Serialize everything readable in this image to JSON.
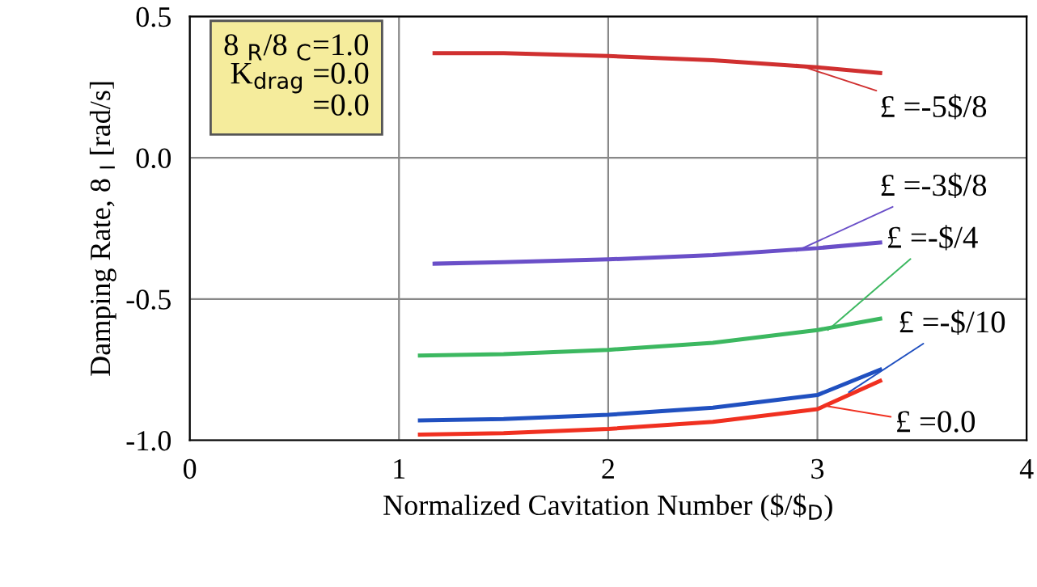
{
  "chart_data": {
    "type": "line",
    "xlabel": "Normalized Cavitation Number ($/$$_{D}$)",
    "ylabel": "Damping Rate, 8 $_{I}$ [rad/s]",
    "xlim": [
      0,
      4
    ],
    "xticks": [
      0,
      1,
      2,
      3,
      4
    ],
    "ylim": [
      -1.0,
      0.5
    ],
    "yticks": [
      {
        "value": -1.0,
        "label": "-1.0"
      },
      {
        "value": -0.5,
        "label": "-0.5"
      },
      {
        "value": 0.0,
        "label": "0.0"
      },
      {
        "value": 0.5,
        "label": "0.5"
      }
    ],
    "grid": true,
    "line_style": "solid",
    "marker": "none",
    "series": [
      {
        "color": "#d03030",
        "x": [
          1.17,
          1.5,
          2.0,
          2.5,
          3.0,
          3.3
        ],
        "values": [
          0.37,
          0.37,
          0.36,
          0.345,
          0.32,
          0.3
        ]
      },
      {
        "color": "#6a4fc8",
        "x": [
          1.17,
          1.5,
          2.0,
          2.5,
          3.0,
          3.3
        ],
        "values": [
          -0.375,
          -0.37,
          -0.36,
          -0.345,
          -0.32,
          -0.3
        ]
      },
      {
        "color": "#3cb860",
        "x": [
          1.1,
          1.5,
          2.0,
          2.5,
          3.0,
          3.3
        ],
        "values": [
          -0.7,
          -0.695,
          -0.68,
          -0.655,
          -0.61,
          -0.57
        ]
      },
      {
        "color": "#2050c0",
        "x": [
          1.1,
          1.5,
          2.0,
          2.5,
          3.0,
          3.3
        ],
        "values": [
          -0.93,
          -0.925,
          -0.91,
          -0.885,
          -0.84,
          -0.75
        ]
      },
      {
        "color": "#f03020",
        "x": [
          1.1,
          1.5,
          2.0,
          2.5,
          3.0,
          3.3
        ],
        "values": [
          -0.98,
          -0.975,
          -0.96,
          -0.935,
          -0.89,
          -0.79
        ]
      }
    ],
    "annotations": [
      "8 $_{R}$/8 $_{C}$=1.0",
      "K$_{drag}$ =0.0",
      "=0.0",
      {
        "text": "£ =-5$/8",
        "x": 2.9,
        "y": 0.33
      },
      {
        "text": "£ =-3$/8",
        "x": 2.9,
        "y": -0.33
      },
      {
        "text": "£ =-$/4",
        "x": 3.05,
        "y": -0.61
      },
      {
        "text": "£ =-$/10",
        "x": 3.15,
        "y": -0.83
      },
      {
        "text": "£ =0.0",
        "x": 3.05,
        "y": -0.88
      }
    ]
  }
}
